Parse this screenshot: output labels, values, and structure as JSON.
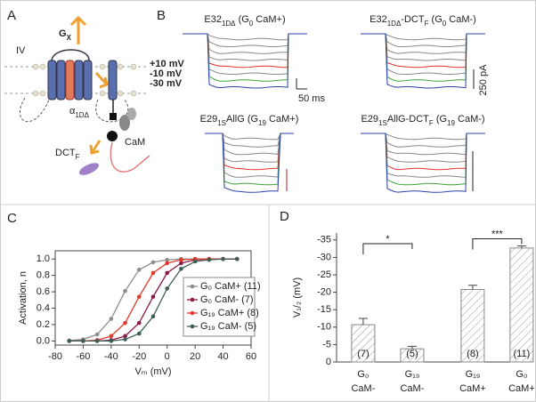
{
  "figure": {
    "panel_a": {
      "letter": "A",
      "domain_label": "IV",
      "g_label": [
        "G",
        "X"
      ],
      "alpha_label": [
        "α",
        "1DΔ"
      ],
      "dct_label": [
        "DCT",
        "F"
      ],
      "cam_label": "CaM"
    },
    "panel_b": {
      "letter": "B",
      "titles": [
        [
          "E32",
          "1DΔ",
          " (G",
          "0",
          " CaM+)"
        ],
        [
          "E32",
          "1DΔ",
          "-DCT",
          "F",
          " (G",
          "0",
          " CaM-)"
        ],
        [
          "E29",
          "1S",
          "AllG (G",
          "19",
          " CaM+)"
        ],
        [
          "E29",
          "1S",
          "AllG-DCT",
          "F",
          " (G",
          "19",
          " CaM-)"
        ]
      ],
      "voltages": [
        {
          "label": "+10 mV",
          "color": "#e0302a"
        },
        {
          "label": "-10 mV",
          "color": "#3aa535"
        },
        {
          "label": "-30 mV",
          "color": "#2a3fa8"
        }
      ],
      "time_scale": "50 ms",
      "current_scale": "250 pA"
    },
    "panel_c_letter": "C",
    "panel_d_letter": "D"
  },
  "chart_data": [
    {
      "type": "line",
      "xlabel": "Vₘ (mV)",
      "ylabel": "Activation, n",
      "x": [
        -70,
        -60,
        -50,
        -40,
        -30,
        -20,
        -10,
        0,
        10,
        20,
        30,
        40,
        50
      ],
      "series": [
        {
          "name": "G₀ CaM+ (11)",
          "color": "#8c8c8c",
          "values": [
            0.005,
            0.02,
            0.08,
            0.27,
            0.61,
            0.87,
            0.96,
            0.99,
            1,
            1,
            1,
            1,
            1
          ]
        },
        {
          "name": "G₀  CaM-  (7)",
          "color": "#8b1a4a",
          "values": [
            0,
            0,
            0,
            0.01,
            0.06,
            0.22,
            0.54,
            0.83,
            0.95,
            0.99,
            1,
            1,
            1
          ]
        },
        {
          "name": "G₁₉ CaM+ (8)",
          "color": "#e03a2a",
          "values": [
            0,
            0,
            0.01,
            0.06,
            0.22,
            0.54,
            0.83,
            0.95,
            0.99,
            1,
            1,
            1,
            1
          ]
        },
        {
          "name": "G₁₉ CaM- (5)",
          "color": "#3f5f55",
          "values": [
            0,
            0,
            0,
            0,
            0.02,
            0.09,
            0.3,
            0.64,
            0.88,
            0.97,
            0.99,
            1,
            1
          ]
        }
      ],
      "xlim": [
        -80,
        60
      ],
      "xticks": [
        -80,
        -60,
        -40,
        -20,
        0,
        20,
        40,
        60
      ],
      "ylim": [
        -0.05,
        1.1
      ],
      "yticks": [
        {
          "value": 0,
          "label": "0.0"
        },
        0.2,
        0.4,
        0.6,
        0.8,
        {
          "value": 1,
          "label": "1.0"
        }
      ],
      "legend": "lower right"
    },
    {
      "type": "bar",
      "ylabel": "V₁/₂ (mV)",
      "categories": [
        [
          "G₀",
          "CaM-"
        ],
        [
          "G₁₉",
          "CaM-"
        ],
        [
          "G₁₉",
          "CaM+"
        ],
        [
          "G₀",
          "CaM+"
        ]
      ],
      "values": [
        -10.7,
        -3.8,
        -20.8,
        -32.7
      ],
      "errors": [
        1.8,
        0.7,
        1.2,
        0.6
      ],
      "n_labels": [
        "(7)",
        "(5)",
        "(8)",
        "(11)"
      ],
      "significance": [
        "*",
        "***"
      ],
      "color": "#888888",
      "hatch": true,
      "ylim": [
        0,
        -37
      ],
      "yticks": [
        0,
        -5,
        -10,
        -15,
        -20,
        -25,
        -30,
        -35
      ]
    }
  ]
}
